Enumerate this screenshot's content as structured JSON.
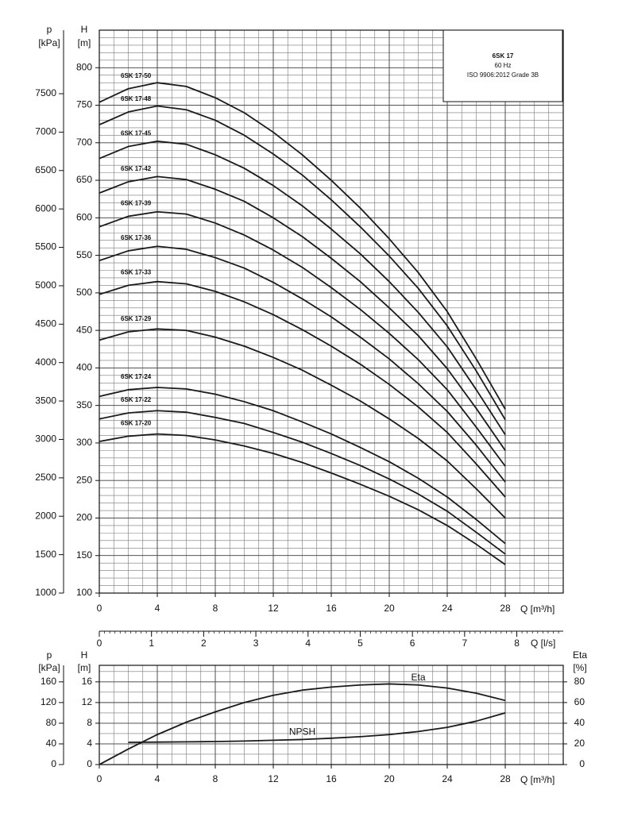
{
  "chart_data": [
    {
      "type": "line",
      "x": [
        0,
        2,
        4,
        6,
        8,
        10,
        12,
        14,
        16,
        18,
        20,
        22,
        24,
        26,
        28
      ],
      "xlim": [
        0,
        32
      ],
      "xticks": [
        0,
        4,
        8,
        12,
        16,
        20,
        24,
        28
      ],
      "xlabel": "Q [m³/h]",
      "ylabel": "H",
      "yunit": "[m]",
      "ylim": [
        100,
        850
      ],
      "yticks": [
        100,
        150,
        200,
        250,
        300,
        350,
        400,
        450,
        500,
        550,
        600,
        650,
        700,
        750,
        800
      ],
      "y2label": "p",
      "y2unit": "[kPa]",
      "y2lim": [
        1000,
        8327
      ],
      "y2ticks": [
        1000,
        1500,
        2000,
        2500,
        3000,
        3500,
        4000,
        4500,
        5000,
        5500,
        6000,
        6500,
        7000,
        7500
      ],
      "x2label": "Q [l/s]",
      "x2lim": [
        0,
        8.89
      ],
      "x2ticks": [
        0,
        1,
        2,
        3,
        4,
        5,
        6,
        7,
        8
      ],
      "box": [
        "6SK 17",
        "60 Hz",
        "ISO 9906:2012 Grade 3B"
      ],
      "grid": true,
      "series": [
        {
          "name": "6SK 17-50",
          "color": "#1a1a1a",
          "values": [
            754,
            772,
            780,
            775,
            760,
            740,
            714,
            684,
            650,
            613,
            572,
            527,
            475,
            412,
            345
          ]
        },
        {
          "name": "6SK 17-48",
          "color": "#1a1a1a",
          "values": [
            724,
            741,
            749,
            744,
            730,
            710,
            685,
            657,
            624,
            588,
            549,
            506,
            456,
            396,
            331
          ]
        },
        {
          "name": "6SK 17-45",
          "color": "#1a1a1a",
          "values": [
            679,
            695,
            702,
            698,
            684,
            666,
            643,
            616,
            585,
            552,
            515,
            474,
            428,
            371,
            311
          ]
        },
        {
          "name": "6SK 17-42",
          "color": "#1a1a1a",
          "values": [
            633,
            648,
            655,
            651,
            638,
            622,
            600,
            575,
            546,
            515,
            480,
            443,
            399,
            346,
            290
          ]
        },
        {
          "name": "6SK 17-39",
          "color": "#1a1a1a",
          "values": [
            588,
            602,
            608,
            605,
            593,
            577,
            557,
            534,
            507,
            478,
            446,
            411,
            371,
            321,
            269
          ]
        },
        {
          "name": "6SK 17-36",
          "color": "#1a1a1a",
          "values": [
            543,
            556,
            562,
            558,
            547,
            533,
            514,
            492,
            468,
            441,
            412,
            379,
            342,
            297,
            248
          ]
        },
        {
          "name": "6SK 17-33",
          "color": "#1a1a1a",
          "values": [
            498,
            510,
            515,
            512,
            502,
            488,
            471,
            451,
            429,
            405,
            378,
            348,
            314,
            272,
            228
          ]
        },
        {
          "name": "6SK 17-29",
          "color": "#1a1a1a",
          "values": [
            437,
            448,
            452,
            450,
            441,
            429,
            414,
            397,
            377,
            356,
            332,
            306,
            276,
            239,
            200
          ]
        },
        {
          "name": "6SK 17-24",
          "color": "#1a1a1a",
          "values": [
            362,
            371,
            374,
            372,
            365,
            355,
            343,
            328,
            312,
            294,
            275,
            253,
            228,
            198,
            166
          ]
        },
        {
          "name": "6SK 17-22",
          "color": "#1a1a1a",
          "values": [
            332,
            340,
            343,
            341,
            334,
            326,
            314,
            301,
            286,
            270,
            252,
            232,
            209,
            181,
            152
          ]
        },
        {
          "name": "6SK 17-20",
          "color": "#1a1a1a",
          "values": [
            302,
            309,
            312,
            310,
            304,
            296,
            286,
            274,
            260,
            245,
            229,
            211,
            190,
            165,
            138
          ]
        }
      ]
    },
    {
      "type": "line",
      "x": [
        0,
        2,
        4,
        6,
        8,
        10,
        12,
        14,
        16,
        18,
        20,
        22,
        24,
        26,
        28
      ],
      "xlim": [
        0,
        32
      ],
      "xticks": [
        0,
        4,
        8,
        12,
        16,
        20,
        24,
        28
      ],
      "xlabel": "Q [m³/h]",
      "ylabel": "H",
      "yunit": "[m]",
      "ylim": [
        0,
        19.2
      ],
      "yticks": [
        0,
        4,
        8,
        12,
        16
      ],
      "y2label": "p",
      "y2unit": "[kPa]",
      "y2lim": [
        0,
        192
      ],
      "y2ticks": [
        0,
        40,
        80,
        120,
        160
      ],
      "y3label": "Eta",
      "y3unit": "[%]",
      "y3lim": [
        0,
        96
      ],
      "y3ticks": [
        0,
        20,
        40,
        60,
        80
      ],
      "grid": true,
      "series": [
        {
          "name": "Eta",
          "color": "#1a1a1a",
          "axis": "y3",
          "values": [
            0,
            15,
            29,
            41,
            51,
            60,
            67,
            72,
            75,
            77,
            78,
            77,
            74,
            69,
            62
          ]
        },
        {
          "name": "NPSH",
          "color": "#1a1a1a",
          "values": [
            null,
            4.3,
            4.35,
            4.4,
            4.45,
            4.55,
            4.7,
            4.85,
            5.1,
            5.4,
            5.8,
            6.4,
            7.2,
            8.4,
            10.0
          ]
        }
      ]
    }
  ]
}
